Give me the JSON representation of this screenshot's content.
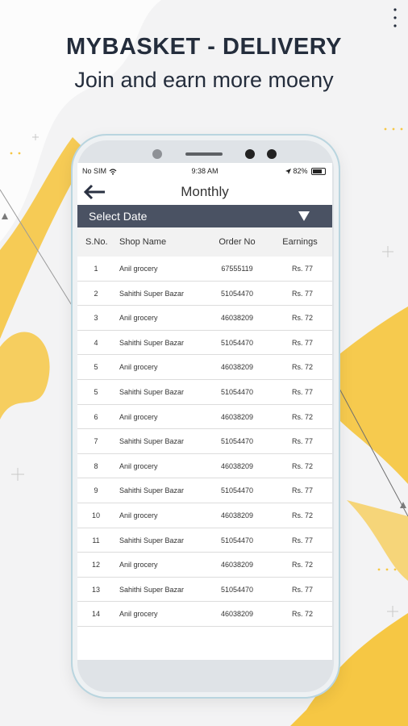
{
  "headline": "MYBASKET - DELIVERY",
  "tagline": "Join and earn more moeny",
  "status_bar": {
    "carrier": "No SIM",
    "time": "9:38 AM",
    "battery": "82%"
  },
  "nav": {
    "title": "Monthly"
  },
  "select": {
    "label": "Select Date"
  },
  "table": {
    "headers": [
      "S.No.",
      "Shop Name",
      "Order No",
      "Earnings"
    ],
    "rows": [
      [
        "1",
        "Anil grocery",
        "67555119",
        "Rs. 77"
      ],
      [
        "2",
        "Sahithi Super Bazar",
        "51054470",
        "Rs. 77"
      ],
      [
        "3",
        "Anil grocery",
        "46038209",
        "Rs. 72"
      ],
      [
        "4",
        "Sahithi Super Bazar",
        "51054470",
        "Rs. 77"
      ],
      [
        "5",
        "Anil grocery",
        "46038209",
        "Rs. 72"
      ],
      [
        "5",
        "Sahithi Super Bazar",
        "51054470",
        "Rs. 77"
      ],
      [
        "6",
        "Anil grocery",
        "46038209",
        "Rs. 72"
      ],
      [
        "7",
        "Sahithi Super Bazar",
        "51054470",
        "Rs. 77"
      ],
      [
        "8",
        "Anil grocery",
        "46038209",
        "Rs. 72"
      ],
      [
        "9",
        "Sahithi Super Bazar",
        "51054470",
        "Rs. 77"
      ],
      [
        "10",
        "Anil grocery",
        "46038209",
        "Rs. 72"
      ],
      [
        "11",
        "Sahithi Super Bazar",
        "51054470",
        "Rs. 77"
      ],
      [
        "12",
        "Anil grocery",
        "46038209",
        "Rs. 72"
      ],
      [
        "13",
        "Sahithi Super Bazar",
        "51054470",
        "Rs. 77"
      ],
      [
        "14",
        "Anil grocery",
        "46038209",
        "Rs. 72"
      ]
    ]
  },
  "colors": {
    "accent": "#f6c744",
    "header_text": "#242d3c",
    "select_bar": "#4a5263"
  },
  "icons": {
    "back": "arrow-left-icon",
    "dropdown": "triangle-down-icon",
    "wifi": "wifi-icon",
    "location": "location-arrow-icon",
    "battery": "battery-icon"
  }
}
